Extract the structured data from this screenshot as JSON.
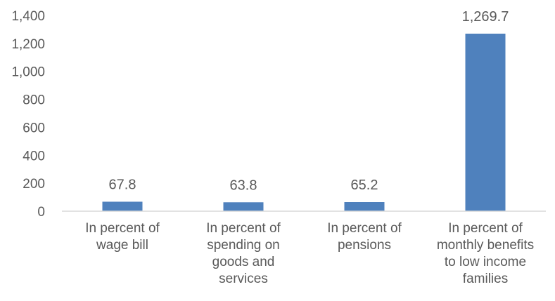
{
  "chart_data": {
    "type": "bar",
    "title": "",
    "xlabel": "",
    "ylabel": "",
    "categories": [
      [
        "In percent of",
        "wage bill"
      ],
      [
        "In percent of",
        "spending on",
        "goods and",
        "services"
      ],
      [
        "In percent of",
        "pensions"
      ],
      [
        "In percent of",
        "monthly benefits",
        "to low income",
        "families"
      ]
    ],
    "values": [
      67.8,
      63.8,
      65.2,
      1269.7
    ],
    "data_labels": [
      "67.8",
      "63.8",
      "65.2",
      "1,269.7"
    ],
    "ylim": [
      0,
      1400
    ],
    "yticks": [
      0,
      200,
      400,
      600,
      800,
      1000,
      1200,
      1400
    ],
    "ytick_labels": [
      "0",
      "200",
      "400",
      "600",
      "800",
      "1,000",
      "1,200",
      "1,400"
    ],
    "grid": false,
    "legend": "none",
    "bar_color": "#4f81bd",
    "axis_color": "#d9d9d9",
    "text_color": "#595959"
  }
}
